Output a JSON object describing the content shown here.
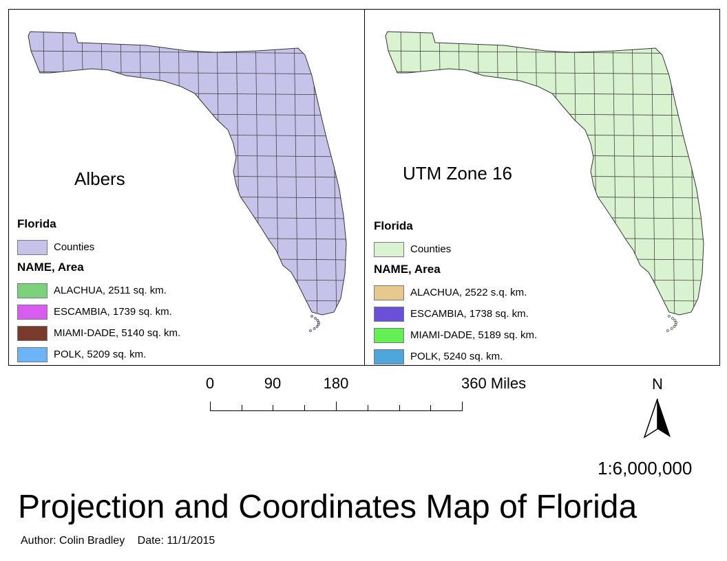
{
  "maps": [
    {
      "projection": "Albers",
      "base_color": "#c6c3ea",
      "legend": {
        "layer_title": "Florida",
        "base_label": "Counties",
        "field_title": "NAME, Area",
        "items": [
          {
            "label": "ALACHUA, 2511 sq. km.",
            "color": "#7bd27b"
          },
          {
            "label": "ESCAMBIA, 1739 sq. km.",
            "color": "#d95cf0"
          },
          {
            "label": "MIAMI-DADE, 5140 sq. km.",
            "color": "#7a3a2b"
          },
          {
            "label": "POLK, 5209 sq. km.",
            "color": "#6cb3f7"
          }
        ]
      }
    },
    {
      "projection": "UTM Zone 16",
      "base_color": "#d9f2d0",
      "legend": {
        "layer_title": "Florida",
        "base_label": "Counties",
        "field_title": "NAME, Area",
        "items": [
          {
            "label": "ALACHUA, 2522 s.q. km.",
            "color": "#e8c98d"
          },
          {
            "label": "ESCAMBIA, 1738 sq. km.",
            "color": "#6c4fd9"
          },
          {
            "label": "MIAMI-DADE, 5189 sq. km.",
            "color": "#66ee55"
          },
          {
            "label": "POLK, 5240 sq. km.",
            "color": "#4fa6dc"
          }
        ]
      }
    }
  ],
  "scale_bar": {
    "labels": [
      "0",
      "90",
      "180",
      "360 Miles"
    ]
  },
  "north_arrow": {
    "label": "N"
  },
  "ratio": "1:6,000,000",
  "title": "Projection and Coordinates Map of Florida",
  "author": "Author: Colin Bradley",
  "date": "Date: 11/1/2015"
}
